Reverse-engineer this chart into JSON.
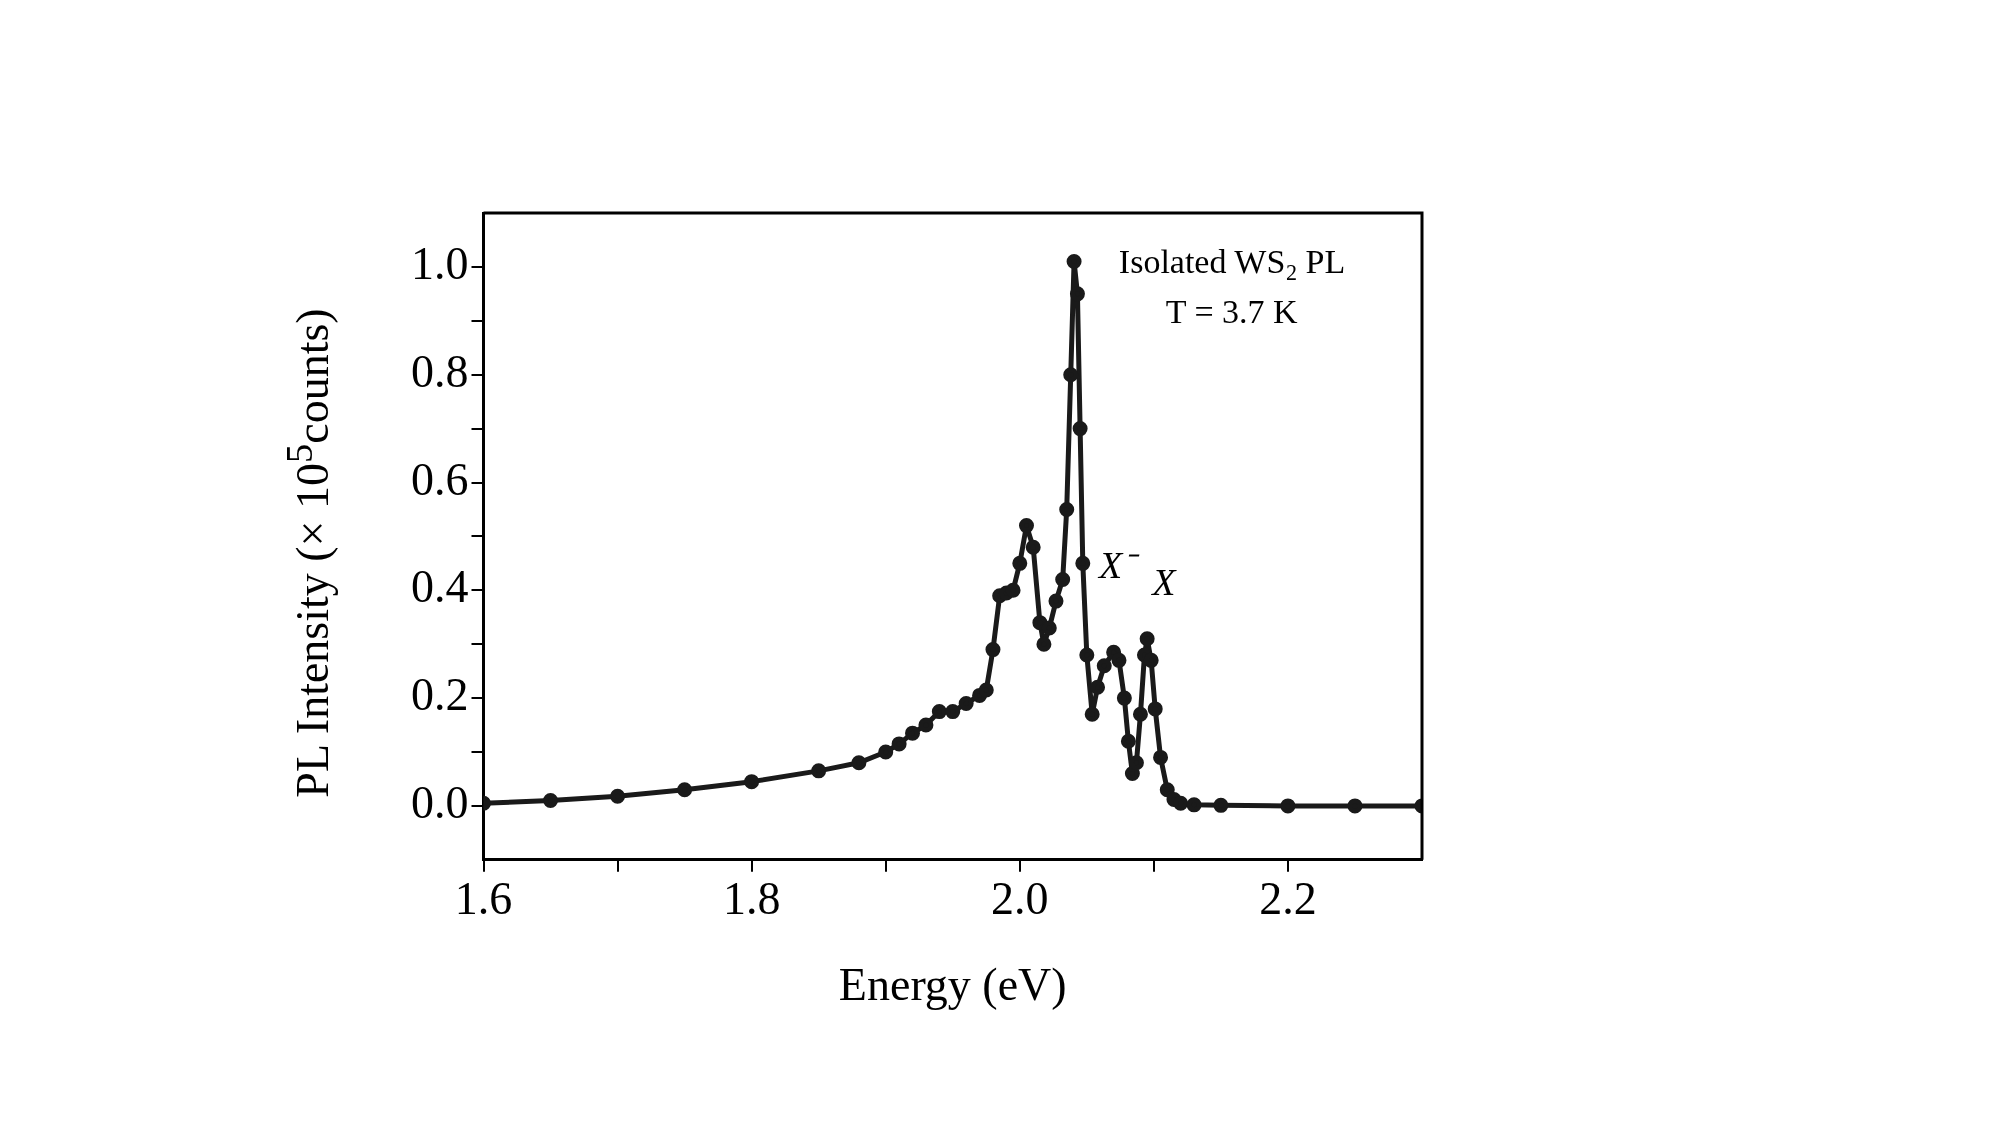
{
  "chart_data": {
    "type": "line",
    "xlabel": "Energy (eV)",
    "ylabel": "PL Intensity (× 10$^{5}$counts)",
    "annotations": [
      "Isolated WS$_{2}$ PL",
      "T = 3.7 K",
      "X⁻",
      "X"
    ],
    "x": [
      1.6,
      1.65,
      1.7,
      1.75,
      1.8,
      1.85,
      1.88,
      1.9,
      1.91,
      1.92,
      1.93,
      1.94,
      1.95,
      1.96,
      1.97,
      1.975,
      1.98,
      1.985,
      1.99,
      1.995,
      2.0,
      2.005,
      2.01,
      2.015,
      2.018,
      2.022,
      2.027,
      2.032,
      2.035,
      2.038,
      2.0405,
      2.043,
      2.045,
      2.047,
      2.05,
      2.054,
      2.058,
      2.063,
      2.07,
      2.074,
      2.078,
      2.081,
      2.084,
      2.087,
      2.09,
      2.093,
      2.095,
      2.098,
      2.101,
      2.105,
      2.11,
      2.115,
      2.12,
      2.13,
      2.15,
      2.2,
      2.25,
      2.3
    ],
    "series": [
      {
        "color": "#1a1a1a",
        "values": [
          0.005,
          0.01,
          0.018,
          0.03,
          0.045,
          0.065,
          0.08,
          0.1,
          0.115,
          0.135,
          0.15,
          0.175,
          0.175,
          0.19,
          0.205,
          0.215,
          0.29,
          0.39,
          0.395,
          0.4,
          0.45,
          0.52,
          0.48,
          0.34,
          0.3,
          0.33,
          0.38,
          0.42,
          0.55,
          0.8,
          1.01,
          0.95,
          0.7,
          0.45,
          0.28,
          0.17,
          0.22,
          0.26,
          0.285,
          0.27,
          0.2,
          0.12,
          0.06,
          0.08,
          0.17,
          0.28,
          0.31,
          0.27,
          0.18,
          0.09,
          0.03,
          0.012,
          0.005,
          0.002,
          0.001,
          0.0,
          0.0,
          0.0
        ]
      }
    ],
    "xlim": [
      1.6,
      2.3
    ],
    "xticks": [
      1.6,
      {
        "value": 1.7,
        "label": null
      },
      1.8,
      {
        "value": 1.9,
        "label": null
      },
      {
        "value": 2.0,
        "label": "2.0"
      },
      {
        "value": 2.1,
        "label": null
      },
      2.2
    ],
    "ylim": [
      -0.1,
      1.1
    ],
    "yticks": [
      {
        "value": 0.0,
        "label": "0.0"
      },
      {
        "value": 0.1,
        "label": null
      },
      0.2,
      {
        "value": 0.3,
        "label": null
      },
      0.4,
      {
        "value": 0.5,
        "label": null
      },
      0.6,
      {
        "value": 0.7,
        "label": null
      },
      0.8,
      {
        "value": 0.9,
        "label": null
      },
      {
        "value": 1.0,
        "label": "1.0"
      }
    ],
    "grid": false,
    "legend": false,
    "marker": "circle",
    "line_style": "solid"
  }
}
